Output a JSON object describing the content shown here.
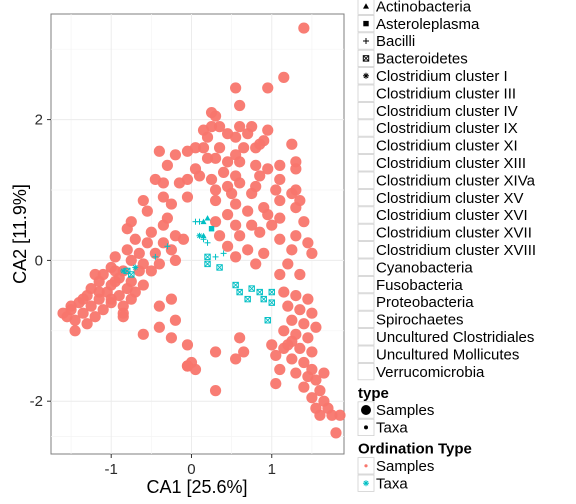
{
  "chart_data": {
    "type": "scatter",
    "xlabel": "CA1   [25.6%]",
    "ylabel": "CA2   [11.9%]",
    "xlim": [
      -1.75,
      1.9
    ],
    "ylim": [
      -2.75,
      3.5
    ],
    "xticks": [
      -1,
      0,
      1
    ],
    "yticks": [
      -2,
      0,
      2
    ],
    "grid": true,
    "colors": {
      "samples": "#f8766d",
      "taxa": "#00bfc4",
      "panel_bg": "#ffffff",
      "grid": "#ececec"
    },
    "samples": [
      [
        1.4,
        3.3
      ],
      [
        1.15,
        2.6
      ],
      [
        0.55,
        2.45
      ],
      [
        0.95,
        2.45
      ],
      [
        0.6,
        2.2
      ],
      [
        0.25,
        2.1
      ],
      [
        0.3,
        2.05
      ],
      [
        0.25,
        1.9
      ],
      [
        0.35,
        1.9
      ],
      [
        0.6,
        1.9
      ],
      [
        0.75,
        1.9
      ],
      [
        0.95,
        1.85
      ],
      [
        0.15,
        1.85
      ],
      [
        0.2,
        1.75
      ],
      [
        0.45,
        1.8
      ],
      [
        0.55,
        1.75
      ],
      [
        0.7,
        1.8
      ],
      [
        0.9,
        1.7
      ],
      [
        0.85,
        1.65
      ],
      [
        0.35,
        1.6
      ],
      [
        0.65,
        1.6
      ],
      [
        0.15,
        1.6
      ],
      [
        0.05,
        1.6
      ],
      [
        0.8,
        1.6
      ],
      [
        1.25,
        1.65
      ],
      [
        -0.05,
        1.55
      ],
      [
        0.55,
        1.5
      ],
      [
        -0.4,
        1.55
      ],
      [
        -0.2,
        1.5
      ],
      [
        0.2,
        1.45
      ],
      [
        0.3,
        1.45
      ],
      [
        0.45,
        1.4
      ],
      [
        0.6,
        1.4
      ],
      [
        0.8,
        1.35
      ],
      [
        1.3,
        1.4
      ],
      [
        -0.3,
        1.35
      ],
      [
        0.05,
        1.3
      ],
      [
        0.95,
        1.3
      ],
      [
        1.1,
        1.35
      ],
      [
        1.3,
        1.3
      ],
      [
        0.4,
        1.25
      ],
      [
        0.55,
        1.2
      ],
      [
        0.85,
        1.2
      ],
      [
        1.1,
        1.15
      ],
      [
        -0.05,
        1.15
      ],
      [
        -0.45,
        1.15
      ],
      [
        0.1,
        1.2
      ],
      [
        0.25,
        1.15
      ],
      [
        0.6,
        1.1
      ],
      [
        1.05,
        1.0
      ],
      [
        1.3,
        1.0
      ],
      [
        -0.35,
        1.1
      ],
      [
        -0.15,
        1.1
      ],
      [
        0.3,
        1.0
      ],
      [
        0.45,
        1.05
      ],
      [
        0.8,
        1.05
      ],
      [
        1.25,
        0.95
      ],
      [
        -0.35,
        0.9
      ],
      [
        -0.05,
        0.9
      ],
      [
        0.5,
        0.95
      ],
      [
        0.75,
        0.95
      ],
      [
        0.3,
        0.85
      ],
      [
        1.1,
        0.85
      ],
      [
        1.35,
        0.85
      ],
      [
        -0.6,
        0.85
      ],
      [
        -0.25,
        0.8
      ],
      [
        0.55,
        0.8
      ],
      [
        0.9,
        0.75
      ],
      [
        1.3,
        0.75
      ],
      [
        -0.55,
        0.7
      ],
      [
        -0.3,
        0.6
      ],
      [
        0.45,
        0.65
      ],
      [
        0.7,
        0.7
      ],
      [
        0.95,
        0.65
      ],
      [
        1.1,
        0.6
      ],
      [
        1.4,
        0.55
      ],
      [
        -0.75,
        0.55
      ],
      [
        -0.35,
        0.5
      ],
      [
        0.3,
        0.55
      ],
      [
        0.55,
        0.5
      ],
      [
        0.75,
        0.5
      ],
      [
        1.0,
        0.5
      ],
      [
        -0.8,
        0.45
      ],
      [
        -0.5,
        0.4
      ],
      [
        -0.2,
        0.35
      ],
      [
        0.35,
        0.35
      ],
      [
        0.6,
        0.35
      ],
      [
        0.85,
        0.4
      ],
      [
        1.1,
        0.3
      ],
      [
        1.3,
        0.35
      ],
      [
        -0.7,
        0.3
      ],
      [
        -0.55,
        0.25
      ],
      [
        -0.35,
        0.25
      ],
      [
        -0.1,
        0.3
      ],
      [
        0.45,
        0.2
      ],
      [
        0.7,
        0.15
      ],
      [
        -0.8,
        0.15
      ],
      [
        -0.65,
        0.1
      ],
      [
        -0.45,
        0.1
      ],
      [
        -0.25,
        0.15
      ],
      [
        0.55,
        0.05
      ],
      [
        0.9,
        0.1
      ],
      [
        1.25,
        0.15
      ],
      [
        1.45,
        0.25
      ],
      [
        -0.95,
        0.05
      ],
      [
        -0.75,
        0.0
      ],
      [
        -0.6,
        -0.05
      ],
      [
        -0.4,
        -0.05
      ],
      [
        -0.2,
        0.0
      ],
      [
        0.8,
        -0.05
      ],
      [
        1.2,
        -0.05
      ],
      [
        1.5,
        0.1
      ],
      [
        -1.0,
        -0.1
      ],
      [
        -0.85,
        -0.15
      ],
      [
        -0.65,
        -0.15
      ],
      [
        -0.5,
        -0.15
      ],
      [
        -1.1,
        -0.2
      ],
      [
        -0.9,
        -0.25
      ],
      [
        -0.75,
        -0.3
      ],
      [
        1.1,
        -0.2
      ],
      [
        1.35,
        -0.2
      ],
      [
        -1.15,
        -0.3
      ],
      [
        -1.0,
        -0.35
      ],
      [
        -0.8,
        -0.4
      ],
      [
        -0.6,
        -0.35
      ],
      [
        -1.25,
        -0.4
      ],
      [
        -1.05,
        -0.45
      ],
      [
        -0.9,
        -0.5
      ],
      [
        -0.7,
        -0.45
      ],
      [
        -1.3,
        -0.5
      ],
      [
        -1.15,
        -0.55
      ],
      [
        -1.0,
        -0.6
      ],
      [
        -0.85,
        -0.65
      ],
      [
        -1.4,
        -0.6
      ],
      [
        -1.25,
        -0.65
      ],
      [
        -1.1,
        -0.7
      ],
      [
        -0.85,
        -0.75
      ],
      [
        -1.5,
        -0.7
      ],
      [
        -1.35,
        -0.75
      ],
      [
        -1.2,
        -0.8
      ],
      [
        -1.55,
        -0.8
      ],
      [
        -1.45,
        -0.85
      ],
      [
        -1.3,
        -0.9
      ],
      [
        -1.0,
        -0.55
      ],
      [
        -0.95,
        -0.3
      ],
      [
        -1.15,
        -0.45
      ],
      [
        -1.2,
        -0.2
      ],
      [
        -0.95,
        -0.15
      ],
      [
        -1.35,
        -0.55
      ],
      [
        -1.5,
        -0.65
      ],
      [
        -1.6,
        -0.75
      ],
      [
        -1.45,
        -1.0
      ],
      [
        -0.25,
        -0.55
      ],
      [
        -0.4,
        -0.65
      ],
      [
        -0.2,
        -0.85
      ],
      [
        -0.4,
        -0.95
      ],
      [
        -0.6,
        -1.05
      ],
      [
        -0.25,
        -1.1
      ],
      [
        -0.85,
        -0.8
      ],
      [
        -0.75,
        -0.55
      ],
      [
        1.15,
        -0.45
      ],
      [
        1.3,
        -0.5
      ],
      [
        1.45,
        -0.55
      ],
      [
        1.2,
        -0.65
      ],
      [
        1.35,
        -0.7
      ],
      [
        1.5,
        -0.75
      ],
      [
        1.25,
        -0.85
      ],
      [
        1.4,
        -0.9
      ],
      [
        1.55,
        -0.95
      ],
      [
        1.15,
        -1.0
      ],
      [
        1.3,
        -1.05
      ],
      [
        1.45,
        -1.1
      ],
      [
        1.2,
        -1.2
      ],
      [
        1.35,
        -1.25
      ],
      [
        1.5,
        -1.3
      ],
      [
        1.25,
        -1.4
      ],
      [
        1.4,
        -1.45
      ],
      [
        1.1,
        -1.55
      ],
      [
        1.3,
        -1.6
      ],
      [
        1.45,
        -1.65
      ],
      [
        1.55,
        -1.7
      ],
      [
        1.4,
        -1.8
      ],
      [
        1.6,
        -1.85
      ],
      [
        1.5,
        -1.95
      ],
      [
        1.65,
        -2.0
      ],
      [
        1.55,
        -2.1
      ],
      [
        1.7,
        -2.1
      ],
      [
        1.6,
        -2.2
      ],
      [
        1.75,
        -2.2
      ],
      [
        1.85,
        -2.2
      ],
      [
        1.8,
        -2.45
      ],
      [
        1.65,
        -1.6
      ],
      [
        1.5,
        -1.55
      ],
      [
        1.05,
        -1.75
      ],
      [
        -0.05,
        -1.2
      ],
      [
        0.0,
        -1.45
      ],
      [
        -0.05,
        -1.5
      ],
      [
        0.05,
        -1.55
      ],
      [
        0.3,
        -1.3
      ],
      [
        0.6,
        -1.1
      ],
      [
        0.65,
        -1.3
      ],
      [
        0.55,
        -1.4
      ],
      [
        1.25,
        -1.15
      ],
      [
        1.15,
        -1.25
      ],
      [
        1.05,
        -1.35
      ],
      [
        1.0,
        -1.2
      ],
      [
        0.3,
        -1.85
      ],
      [
        -0.05,
        -1.5
      ]
    ],
    "taxa": {
      "Actinobacteria": {
        "symbol": "triangle",
        "points": [
          [
            0.15,
            0.55
          ],
          [
            0.2,
            0.6
          ],
          [
            0.15,
            0.35
          ]
        ]
      },
      "Asteroleplasma": {
        "symbol": "square",
        "points": [
          [
            0.25,
            0.45
          ]
        ]
      },
      "Bacilli": {
        "symbol": "plus",
        "points": [
          [
            0.05,
            0.55
          ],
          [
            0.1,
            0.55
          ],
          [
            0.2,
            0.25
          ],
          [
            -0.3,
            0.2
          ],
          [
            -0.45,
            0.05
          ],
          [
            0.4,
            0.1
          ],
          [
            0.3,
            0.05
          ],
          [
            0.15,
            0.3
          ]
        ]
      },
      "Bacteroidetes": {
        "symbol": "square-x",
        "points": [
          [
            0.2,
            0.05
          ],
          [
            0.35,
            -0.1
          ],
          [
            0.55,
            -0.35
          ],
          [
            0.6,
            -0.45
          ],
          [
            0.75,
            -0.4
          ],
          [
            0.85,
            -0.45
          ],
          [
            0.9,
            -0.55
          ],
          [
            1.0,
            -0.45
          ],
          [
            1.0,
            -0.6
          ],
          [
            0.7,
            -0.55
          ],
          [
            0.95,
            -0.85
          ],
          [
            0.2,
            -0.05
          ],
          [
            -0.8,
            -0.15
          ],
          [
            -0.75,
            -0.2
          ]
        ]
      },
      "Clostridium cluster I": {
        "symbol": "asterisk",
        "points": [
          [
            0.1,
            0.35
          ],
          [
            -0.85,
            -0.15
          ],
          [
            -0.7,
            -0.1
          ]
        ]
      }
    },
    "legend": {
      "position": "right",
      "phylum_entries": [
        {
          "label": "Actinobacteria",
          "symbol": "triangle"
        },
        {
          "label": "Asteroleplasma",
          "symbol": "square"
        },
        {
          "label": "Bacilli",
          "symbol": "plus"
        },
        {
          "label": "Bacteroidetes",
          "symbol": "square-x"
        },
        {
          "label": "Clostridium cluster I",
          "symbol": "asterisk"
        },
        {
          "label": "Clostridium cluster III",
          "symbol": "none"
        },
        {
          "label": "Clostridium cluster IV",
          "symbol": "none"
        },
        {
          "label": "Clostridium cluster IX",
          "symbol": "none"
        },
        {
          "label": "Clostridium cluster XI",
          "symbol": "none"
        },
        {
          "label": "Clostridium cluster XIII",
          "symbol": "none"
        },
        {
          "label": "Clostridium cluster XIVa",
          "symbol": "none"
        },
        {
          "label": "Clostridium cluster XV",
          "symbol": "none"
        },
        {
          "label": "Clostridium cluster XVI",
          "symbol": "none"
        },
        {
          "label": "Clostridium cluster XVII",
          "symbol": "none"
        },
        {
          "label": "Clostridium cluster XVIII",
          "symbol": "none"
        },
        {
          "label": "Cyanobacteria",
          "symbol": "none"
        },
        {
          "label": "Fusobacteria",
          "symbol": "none"
        },
        {
          "label": "Proteobacteria",
          "symbol": "none"
        },
        {
          "label": "Spirochaetes",
          "symbol": "none"
        },
        {
          "label": "Uncultured Clostridiales",
          "symbol": "none"
        },
        {
          "label": "Uncultured Mollicutes",
          "symbol": "none"
        },
        {
          "label": "Verrucomicrobia",
          "symbol": "none"
        }
      ],
      "type_title": "type",
      "type_entries": [
        {
          "label": "Samples",
          "symbol": "big-dot"
        },
        {
          "label": "Taxa",
          "symbol": "small-dot"
        }
      ],
      "ordination_title": "Ordination Type",
      "ordination_entries": [
        {
          "label": "Samples",
          "symbol": "sample-dot"
        },
        {
          "label": "Taxa",
          "symbol": "taxa-asterisk"
        }
      ]
    }
  }
}
